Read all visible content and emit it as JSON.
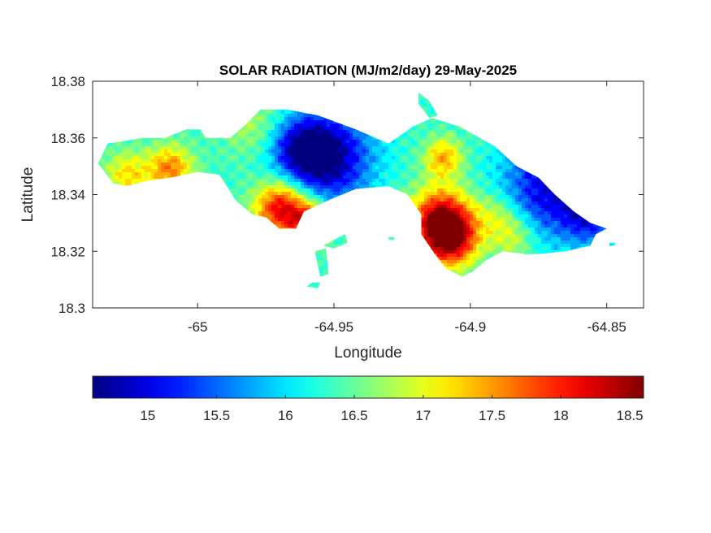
{
  "chart_data": {
    "type": "heatmap",
    "title": "SOLAR RADIATION (MJ/m2/day) 29-May-2025",
    "xlabel": "Longitude",
    "ylabel": "Latitude",
    "xlim": [
      -65.0385,
      -64.8365
    ],
    "ylim": [
      18.3,
      18.38
    ],
    "xticks": [
      -65,
      -64.95,
      -64.9,
      -64.85
    ],
    "xtick_labels": [
      "-65",
      "-64.95",
      "-64.9",
      "-64.85"
    ],
    "yticks": [
      18.3,
      18.32,
      18.34,
      18.36,
      18.38
    ],
    "ytick_labels": [
      "18.3",
      "18.32",
      "18.34",
      "18.36",
      "18.38"
    ],
    "colorbar": {
      "colormap": "jet",
      "clim": [
        14.6,
        18.6
      ],
      "ticks": [
        15,
        15.5,
        16,
        16.5,
        17,
        17.5,
        18,
        18.5
      ],
      "tick_labels": [
        "15",
        "15.5",
        "16",
        "16.5",
        "17",
        "17.5",
        "18",
        "18.5"
      ]
    },
    "land_outline": [
      [
        -65.0365,
        18.351
      ],
      [
        -65.033,
        18.358
      ],
      [
        -65.02,
        18.36
      ],
      [
        -65.012,
        18.36
      ],
      [
        -65.004,
        18.363
      ],
      [
        -64.999,
        18.363
      ],
      [
        -64.997,
        18.36
      ],
      [
        -64.988,
        18.36
      ],
      [
        -64.982,
        18.365
      ],
      [
        -64.977,
        18.37
      ],
      [
        -64.967,
        18.37
      ],
      [
        -64.956,
        18.368
      ],
      [
        -64.942,
        18.363
      ],
      [
        -64.93,
        18.358
      ],
      [
        -64.921,
        18.364
      ],
      [
        -64.914,
        18.367
      ],
      [
        -64.904,
        18.364
      ],
      [
        -64.891,
        18.357
      ],
      [
        -64.883,
        18.35
      ],
      [
        -64.875,
        18.346
      ],
      [
        -64.869,
        18.34
      ],
      [
        -64.862,
        18.334
      ],
      [
        -64.856,
        18.33
      ],
      [
        -64.85,
        18.328
      ],
      [
        -64.854,
        18.326
      ],
      [
        -64.856,
        18.322
      ],
      [
        -64.865,
        18.32
      ],
      [
        -64.875,
        18.319
      ],
      [
        -64.88,
        18.319
      ],
      [
        -64.888,
        18.32
      ],
      [
        -64.894,
        18.317
      ],
      [
        -64.899,
        18.313
      ],
      [
        -64.903,
        18.311
      ],
      [
        -64.909,
        18.314
      ],
      [
        -64.913,
        18.319
      ],
      [
        -64.918,
        18.326
      ],
      [
        -64.918,
        18.333
      ],
      [
        -64.923,
        18.34
      ],
      [
        -64.93,
        18.343
      ],
      [
        -64.942,
        18.342
      ],
      [
        -64.952,
        18.338
      ],
      [
        -64.961,
        18.334
      ],
      [
        -64.964,
        18.328
      ],
      [
        -64.97,
        18.328
      ],
      [
        -64.975,
        18.332
      ],
      [
        -64.98,
        18.333
      ],
      [
        -64.986,
        18.338
      ],
      [
        -64.992,
        18.347
      ],
      [
        -65.0,
        18.348
      ],
      [
        -65.01,
        18.346
      ],
      [
        -65.018,
        18.345
      ],
      [
        -65.026,
        18.343
      ],
      [
        -65.031,
        18.344
      ],
      [
        -65.0365,
        18.351
      ]
    ],
    "islets": [
      [
        [
          -64.954,
          18.322
        ],
        [
          -64.95,
          18.324
        ],
        [
          -64.946,
          18.326
        ],
        [
          -64.945,
          18.323
        ],
        [
          -64.95,
          18.321
        ]
      ],
      [
        [
          -64.957,
          18.32
        ],
        [
          -64.953,
          18.321
        ],
        [
          -64.952,
          18.312
        ],
        [
          -64.955,
          18.311
        ]
      ],
      [
        [
          -64.958,
          18.309
        ],
        [
          -64.955,
          18.309
        ],
        [
          -64.956,
          18.307
        ],
        [
          -64.96,
          18.3075
        ]
      ],
      [
        [
          -64.93,
          18.325
        ],
        [
          -64.928,
          18.325
        ],
        [
          -64.928,
          18.324
        ],
        [
          -64.93,
          18.324
        ]
      ],
      [
        [
          -64.919,
          18.376
        ],
        [
          -64.915,
          18.373
        ],
        [
          -64.912,
          18.368
        ],
        [
          -64.915,
          18.367
        ],
        [
          -64.919,
          18.372
        ]
      ],
      [
        [
          -64.849,
          18.323
        ],
        [
          -64.847,
          18.323
        ],
        [
          -64.847,
          18.322
        ],
        [
          -64.849,
          18.322
        ]
      ]
    ],
    "field_centers": [
      {
        "lon": -64.952,
        "lat": 18.353,
        "value": 14.7,
        "spread": 0.011
      },
      {
        "lon": -64.962,
        "lat": 18.356,
        "value": 15.2,
        "spread": 0.008
      },
      {
        "lon": -64.872,
        "lat": 18.342,
        "value": 15.0,
        "spread": 0.012
      },
      {
        "lon": -64.856,
        "lat": 18.333,
        "value": 15.2,
        "spread": 0.007
      },
      {
        "lon": -64.911,
        "lat": 18.331,
        "value": 18.3,
        "spread": 0.008
      },
      {
        "lon": -64.907,
        "lat": 18.324,
        "value": 18.0,
        "spread": 0.007
      },
      {
        "lon": -64.969,
        "lat": 18.335,
        "value": 18.3,
        "spread": 0.007
      },
      {
        "lon": -64.958,
        "lat": 18.33,
        "value": 17.9,
        "spread": 0.005
      },
      {
        "lon": -65.01,
        "lat": 18.349,
        "value": 17.6,
        "spread": 0.006
      },
      {
        "lon": -65.026,
        "lat": 18.347,
        "value": 17.2,
        "spread": 0.006
      },
      {
        "lon": -64.91,
        "lat": 18.353,
        "value": 17.4,
        "spread": 0.005
      },
      {
        "lon": -64.98,
        "lat": 18.364,
        "value": 16.8,
        "spread": 0.008
      },
      {
        "lon": -64.89,
        "lat": 18.333,
        "value": 16.9,
        "spread": 0.006
      },
      {
        "lon": -64.884,
        "lat": 18.325,
        "value": 17.0,
        "spread": 0.006
      }
    ],
    "field_base": 16.3
  }
}
